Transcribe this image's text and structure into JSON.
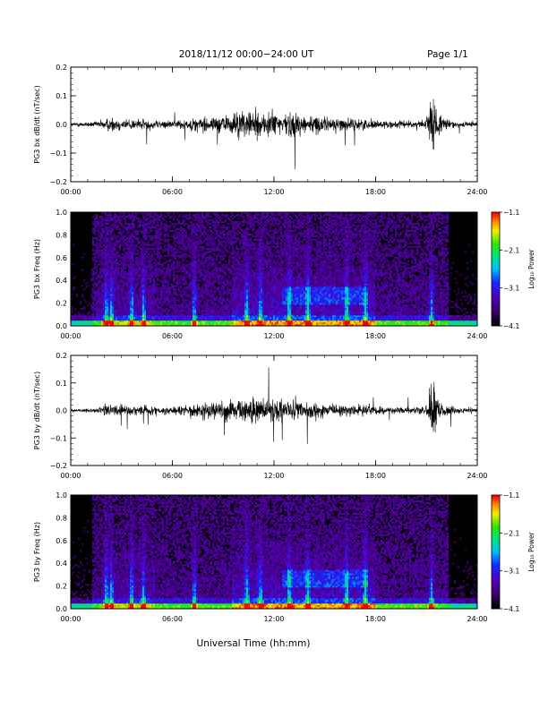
{
  "header": {
    "title": "2018/11/12  00:00−24:00 UT",
    "page": "Page 1/1"
  },
  "xlabel": "Universal Time (hh:mm)",
  "colorbar": {
    "label": "Log₁₀ Power",
    "ticks": [
      "−1.1",
      "−2.1",
      "−3.1",
      "−4.1"
    ],
    "range": [
      -4.1,
      -1.1
    ],
    "colormap": "rainbow (black-purple-blue-cyan-green-yellow-red)"
  },
  "chart_data": [
    {
      "type": "line",
      "ylabel": "PG3 bx dB/dt (nT/sec)",
      "xlim": [
        0,
        24
      ],
      "ylim": [
        -0.2,
        0.2
      ],
      "xticks": [
        "00:00",
        "06:00",
        "12:00",
        "18:00",
        "24:00"
      ],
      "yticks": [
        "0.2",
        "0.1",
        "0.0",
        "−0.1",
        "−0.2"
      ],
      "envelope": {
        "x_hours": [
          0,
          1.5,
          2,
          2.5,
          3,
          4,
          5,
          5.5,
          6,
          7,
          8,
          9,
          9.5,
          10,
          10.5,
          11,
          11.5,
          12,
          12.5,
          13,
          13.5,
          14,
          14.5,
          15,
          16,
          17,
          18,
          19,
          20,
          21,
          21.2,
          21.4,
          21.6,
          22,
          23,
          24
        ],
        "amplitude": [
          0.01,
          0.015,
          0.03,
          0.04,
          0.03,
          0.03,
          0.025,
          0.02,
          0.02,
          0.035,
          0.04,
          0.045,
          0.06,
          0.07,
          0.07,
          0.07,
          0.075,
          0.07,
          0.06,
          0.065,
          0.06,
          0.05,
          0.045,
          0.04,
          0.035,
          0.03,
          0.025,
          0.02,
          0.02,
          0.03,
          0.12,
          0.2,
          0.07,
          0.03,
          0.015,
          0.015
        ]
      }
    },
    {
      "type": "heatmap",
      "ylabel": "PG3 bx Freq (Hz)",
      "xlim": [
        0,
        24
      ],
      "ylim": [
        0,
        1.0
      ],
      "xticks": [
        "00:00",
        "06:00",
        "12:00",
        "18:00",
        "24:00"
      ],
      "yticks": [
        "1.0",
        "0.8",
        "0.6",
        "0.4",
        "0.2",
        "0.0"
      ],
      "zlim": [
        -4.1,
        -1.1
      ],
      "events_hours": [
        2.1,
        2.4,
        3.6,
        4.3,
        7.3,
        10.4,
        11.2,
        12.9,
        14.0,
        16.3,
        17.4,
        21.3
      ]
    },
    {
      "type": "line",
      "ylabel": "PG3 by dB/dt (nT/sec)",
      "xlim": [
        0,
        24
      ],
      "ylim": [
        -0.2,
        0.2
      ],
      "xticks": [
        "00:00",
        "06:00",
        "12:00",
        "18:00",
        "24:00"
      ],
      "yticks": [
        "0.2",
        "0.1",
        "0.0",
        "−0.1",
        "−0.2"
      ],
      "envelope": {
        "x_hours": [
          0,
          1.5,
          2,
          2.5,
          3,
          4,
          5,
          5.5,
          6,
          7,
          8,
          9,
          9.5,
          10,
          10.5,
          11,
          11.5,
          12,
          12.5,
          13,
          13.5,
          14,
          14.5,
          15,
          16,
          17,
          18,
          19,
          20,
          21,
          21.2,
          21.4,
          21.6,
          22,
          23,
          24
        ],
        "amplitude": [
          0.008,
          0.012,
          0.04,
          0.03,
          0.025,
          0.03,
          0.025,
          0.02,
          0.02,
          0.035,
          0.045,
          0.05,
          0.06,
          0.065,
          0.07,
          0.065,
          0.07,
          0.06,
          0.055,
          0.06,
          0.055,
          0.05,
          0.045,
          0.04,
          0.035,
          0.03,
          0.025,
          0.02,
          0.02,
          0.03,
          0.1,
          0.2,
          0.07,
          0.03,
          0.015,
          0.012
        ]
      }
    },
    {
      "type": "heatmap",
      "ylabel": "PG3 by Freq (Hz)",
      "xlim": [
        0,
        24
      ],
      "ylim": [
        0,
        1.0
      ],
      "xticks": [
        "00:00",
        "06:00",
        "12:00",
        "18:00",
        "24:00"
      ],
      "yticks": [
        "1.0",
        "0.8",
        "0.6",
        "0.4",
        "0.2",
        "0.0"
      ],
      "zlim": [
        -4.1,
        -1.1
      ],
      "events_hours": [
        2.1,
        2.4,
        3.6,
        4.3,
        7.3,
        10.4,
        11.2,
        12.9,
        14.0,
        16.3,
        17.4,
        21.3
      ]
    }
  ]
}
